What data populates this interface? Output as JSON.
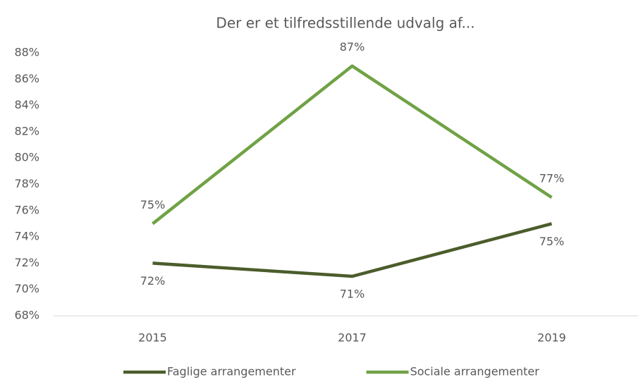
{
  "chart_data": {
    "type": "line",
    "title": "Der er et tilfredsstillende udvalg af...",
    "categories": [
      "2015",
      "2017",
      "2019"
    ],
    "series": [
      {
        "name": "Faglige arrangementer",
        "color": "#4b5d2b",
        "values": [
          72,
          71,
          75
        ],
        "value_labels": [
          "72%",
          "71%",
          "75%"
        ]
      },
      {
        "name": "Sociale arrangementer",
        "color": "#70a245",
        "values": [
          75,
          87,
          77
        ],
        "value_labels": [
          "75%",
          "87%",
          "77%"
        ]
      }
    ],
    "ylim": [
      68,
      88
    ],
    "yticks": [
      {
        "value": 68,
        "label": "68%"
      },
      {
        "value": 70,
        "label": "70%"
      },
      {
        "value": 72,
        "label": "72%"
      },
      {
        "value": 74,
        "label": "74%"
      },
      {
        "value": 76,
        "label": "76%"
      },
      {
        "value": 78,
        "label": "78%"
      },
      {
        "value": 80,
        "label": "80%"
      },
      {
        "value": 82,
        "label": "82%"
      },
      {
        "value": 84,
        "label": "84%"
      },
      {
        "value": 86,
        "label": "86%"
      },
      {
        "value": 88,
        "label": "88%"
      }
    ],
    "grid": false,
    "legend": "bottom"
  }
}
